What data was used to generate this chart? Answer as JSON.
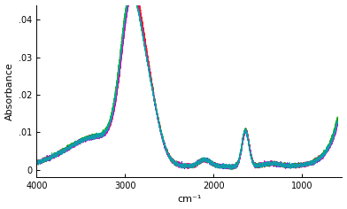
{
  "title": "",
  "xlabel": "cm⁻¹",
  "ylabel": "Absorbance",
  "xlim": [
    4000,
    550
  ],
  "ylim": [
    -0.002,
    0.044
  ],
  "yticks": [
    0,
    0.01,
    0.02,
    0.03,
    0.04
  ],
  "ytick_labels": [
    "0",
    ".01",
    ".02",
    ".03",
    ".04"
  ],
  "background_color": "#ffffff",
  "line_colors": [
    "#0000ff",
    "#ff0000",
    "#00aa00",
    "#cc00cc",
    "#00aaaa"
  ],
  "linewidth": 0.75,
  "figsize": [
    3.92,
    2.36
  ],
  "dpi": 100
}
